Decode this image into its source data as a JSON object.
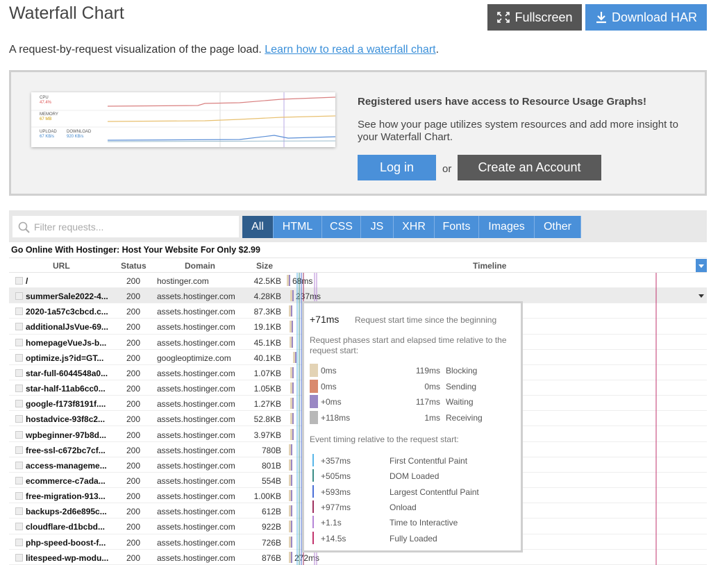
{
  "header": {
    "title": "Waterfall Chart",
    "fullscreen": "Fullscreen",
    "download": "Download HAR"
  },
  "intro": {
    "text": "A request-by-request visualization of the page load.",
    "link": "Learn how to read a waterfall chart",
    "end": "."
  },
  "promo": {
    "graph_labels": {
      "cpu": "CPU",
      "cpu_value": "47.4%",
      "memory": "MEMORY",
      "memory_value": "67 MB",
      "upload": "UPLOAD",
      "upload_value": "67 KB/s",
      "download": "DOWNLOAD",
      "download_value": "920 KB/s"
    },
    "heading": "Registered users have access to Resource Usage Graphs!",
    "text": "See how your page utilizes system resources and add more insight to your Waterfall Chart.",
    "login": "Log in",
    "or": "or",
    "create": "Create an Account"
  },
  "filter": {
    "placeholder": "Filter requests...",
    "tabs": [
      "All",
      "HTML",
      "CSS",
      "JS",
      "XHR",
      "Fonts",
      "Images",
      "Other"
    ]
  },
  "page_title": "Go Online With Hostinger: Host Your Website For Only $2.99",
  "table": {
    "columns": {
      "url": "URL",
      "status": "Status",
      "domain": "Domain",
      "size": "Size",
      "timeline": "Timeline"
    },
    "rows": [
      {
        "url": "/",
        "status": "200",
        "domain": "hostinger.com",
        "size": "42.5KB",
        "time": "68ms"
      },
      {
        "url": "summerSale2022-4...",
        "status": "200",
        "domain": "assets.hostinger.com",
        "size": "4.28KB",
        "time": "237ms"
      },
      {
        "url": "2020-1a57c3cbcd.c...",
        "status": "200",
        "domain": "assets.hostinger.com",
        "size": "87.3KB"
      },
      {
        "url": "additionalJsVue-69...",
        "status": "200",
        "domain": "assets.hostinger.com",
        "size": "19.1KB"
      },
      {
        "url": "homepageVueJs-b...",
        "status": "200",
        "domain": "assets.hostinger.com",
        "size": "45.1KB"
      },
      {
        "url": "optimize.js?id=GT...",
        "status": "200",
        "domain": "googleoptimize.com",
        "size": "40.1KB"
      },
      {
        "url": "star-full-6044548a0...",
        "status": "200",
        "domain": "assets.hostinger.com",
        "size": "1.07KB"
      },
      {
        "url": "star-half-11ab6cc0...",
        "status": "200",
        "domain": "assets.hostinger.com",
        "size": "1.05KB"
      },
      {
        "url": "google-f173f8191f....",
        "status": "200",
        "domain": "assets.hostinger.com",
        "size": "1.27KB"
      },
      {
        "url": "hostadvice-93f8c2...",
        "status": "200",
        "domain": "assets.hostinger.com",
        "size": "52.8KB"
      },
      {
        "url": "wpbeginner-97b8d...",
        "status": "200",
        "domain": "assets.hostinger.com",
        "size": "3.97KB"
      },
      {
        "url": "free-ssl-c672bc7cf...",
        "status": "200",
        "domain": "assets.hostinger.com",
        "size": "780B"
      },
      {
        "url": "access-manageme...",
        "status": "200",
        "domain": "assets.hostinger.com",
        "size": "801B"
      },
      {
        "url": "ecommerce-c7ada...",
        "status": "200",
        "domain": "assets.hostinger.com",
        "size": "554B"
      },
      {
        "url": "free-migration-913...",
        "status": "200",
        "domain": "assets.hostinger.com",
        "size": "1.00KB"
      },
      {
        "url": "backups-2d6e895c...",
        "status": "200",
        "domain": "assets.hostinger.com",
        "size": "612B"
      },
      {
        "url": "cloudflare-d1bcbd...",
        "status": "200",
        "domain": "assets.hostinger.com",
        "size": "922B"
      },
      {
        "url": "php-speed-boost-f...",
        "status": "200",
        "domain": "assets.hostinger.com",
        "size": "726B"
      },
      {
        "url": "litespeed-wp-modu...",
        "status": "200",
        "domain": "assets.hostinger.com",
        "size": "876B",
        "time": "272ms"
      }
    ]
  },
  "tooltip": {
    "start": "+71ms",
    "start_label": "Request start time since the beginning",
    "phases_label": "Request phases start and elapsed time relative to the request start:",
    "phases": [
      {
        "start": "0ms",
        "elapsed": "119ms",
        "name": "Blocking",
        "color": "#e3d3b5"
      },
      {
        "start": "0ms",
        "elapsed": "0ms",
        "name": "Sending",
        "color": "#d98a6e"
      },
      {
        "start": "+0ms",
        "elapsed": "117ms",
        "name": "Waiting",
        "color": "#9a88c4"
      },
      {
        "start": "+118ms",
        "elapsed": "1ms",
        "name": "Receiving",
        "color": "#b8b8b8"
      }
    ],
    "events_label": "Event timing relative to the request start:",
    "events": [
      {
        "time": "+357ms",
        "name": "First Contentful Paint",
        "color": "#57b6e8"
      },
      {
        "time": "+505ms",
        "name": "DOM Loaded",
        "color": "#3a8c86"
      },
      {
        "time": "+593ms",
        "name": "Largest Contentful Paint",
        "color": "#4b6fd6"
      },
      {
        "time": "+977ms",
        "name": "Onload",
        "color": "#9e2f5e"
      },
      {
        "time": "+1.1s",
        "name": "Time to Interactive",
        "color": "#b584d6"
      },
      {
        "time": "+14.5s",
        "name": "Fully Loaded",
        "color": "#c2336d"
      }
    ]
  }
}
